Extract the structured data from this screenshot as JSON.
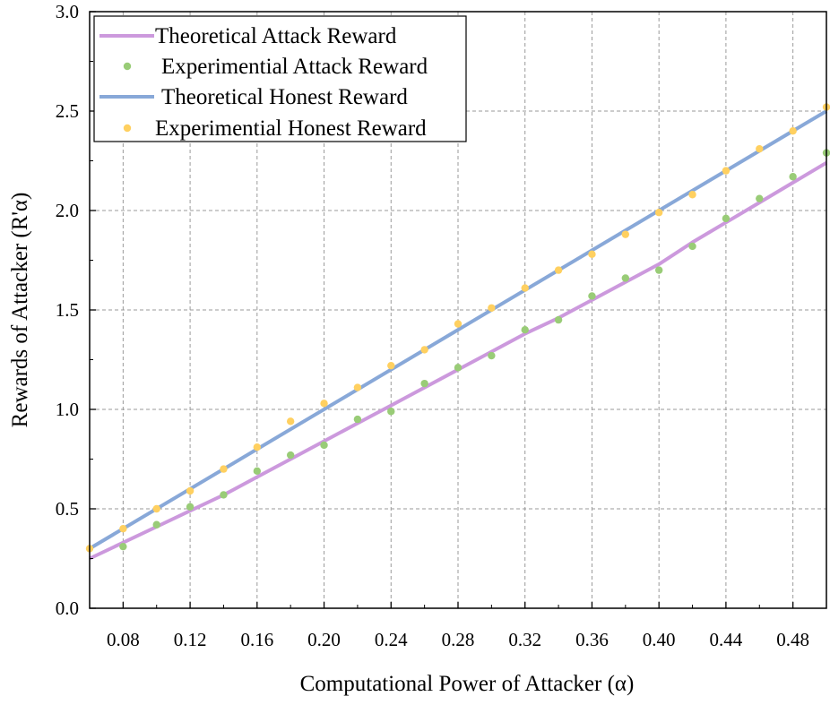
{
  "chart_data": {
    "type": "line",
    "xlabel": "Computational Power of Attacker (α)",
    "ylabel": "Rewards of Attacker (R'α)",
    "xlim": [
      0.06,
      0.5
    ],
    "ylim": [
      0.0,
      3.0
    ],
    "x_ticks": [
      "0.08",
      "0.12",
      "0.16",
      "0.20",
      "0.24",
      "0.28",
      "0.32",
      "0.36",
      "0.40",
      "0.44",
      "0.48"
    ],
    "y_ticks": [
      "0.0",
      "0.5",
      "1.0",
      "1.5",
      "2.0",
      "2.5",
      "3.0"
    ],
    "x_tick_values": [
      0.08,
      0.12,
      0.16,
      0.2,
      0.24,
      0.28,
      0.32,
      0.36,
      0.4,
      0.44,
      0.48
    ],
    "y_tick_values": [
      0.0,
      0.5,
      1.0,
      1.5,
      2.0,
      2.5,
      3.0
    ],
    "grid": true,
    "legend_position": "top-left",
    "x": [
      0.06,
      0.08,
      0.1,
      0.12,
      0.14,
      0.16,
      0.18,
      0.2,
      0.22,
      0.24,
      0.26,
      0.28,
      0.3,
      0.32,
      0.34,
      0.36,
      0.38,
      0.4,
      0.42,
      0.44,
      0.46,
      0.48,
      0.5
    ],
    "series": [
      {
        "name": "Theoretical Attack Reward",
        "kind": "line",
        "color": "#cc99dd",
        "x": [
          0.06,
          0.08,
          0.1,
          0.12,
          0.14,
          0.16,
          0.18,
          0.2,
          0.22,
          0.24,
          0.26,
          0.28,
          0.3,
          0.32,
          0.34,
          0.36,
          0.38,
          0.4,
          0.42,
          0.44,
          0.46,
          0.48,
          0.5
        ],
        "values": [
          0.25,
          0.33,
          0.41,
          0.49,
          0.57,
          0.66,
          0.75,
          0.84,
          0.93,
          1.02,
          1.11,
          1.2,
          1.29,
          1.38,
          1.46,
          1.55,
          1.64,
          1.73,
          1.84,
          1.94,
          2.04,
          2.14,
          2.24
        ]
      },
      {
        "name": "Experimential Attack Reward",
        "kind": "scatter",
        "color": "#99cc77",
        "x": [
          0.08,
          0.1,
          0.12,
          0.14,
          0.16,
          0.18,
          0.2,
          0.22,
          0.24,
          0.26,
          0.28,
          0.3,
          0.32,
          0.34,
          0.36,
          0.38,
          0.4,
          0.42,
          0.44,
          0.46,
          0.48,
          0.5
        ],
        "values": [
          0.31,
          0.42,
          0.51,
          0.57,
          0.69,
          0.77,
          0.82,
          0.95,
          0.99,
          1.13,
          1.21,
          1.27,
          1.4,
          1.45,
          1.57,
          1.66,
          1.7,
          1.82,
          1.96,
          2.06,
          2.17,
          2.29
        ]
      },
      {
        "name": "Theoretical Honest Reward",
        "kind": "line",
        "color": "#88a8d8",
        "x": [
          0.06,
          0.5
        ],
        "values": [
          0.3,
          2.5
        ]
      },
      {
        "name": "Experimential Honest Reward",
        "kind": "scatter",
        "color": "#ffd060",
        "x": [
          0.06,
          0.08,
          0.1,
          0.12,
          0.14,
          0.16,
          0.18,
          0.2,
          0.22,
          0.24,
          0.26,
          0.28,
          0.3,
          0.32,
          0.34,
          0.36,
          0.38,
          0.4,
          0.42,
          0.44,
          0.46,
          0.48,
          0.5
        ],
        "values": [
          0.3,
          0.4,
          0.5,
          0.59,
          0.7,
          0.81,
          0.94,
          1.03,
          1.11,
          1.22,
          1.3,
          1.43,
          1.51,
          1.61,
          1.7,
          1.78,
          1.88,
          1.99,
          2.08,
          2.2,
          2.31,
          2.4,
          2.52
        ]
      }
    ]
  }
}
